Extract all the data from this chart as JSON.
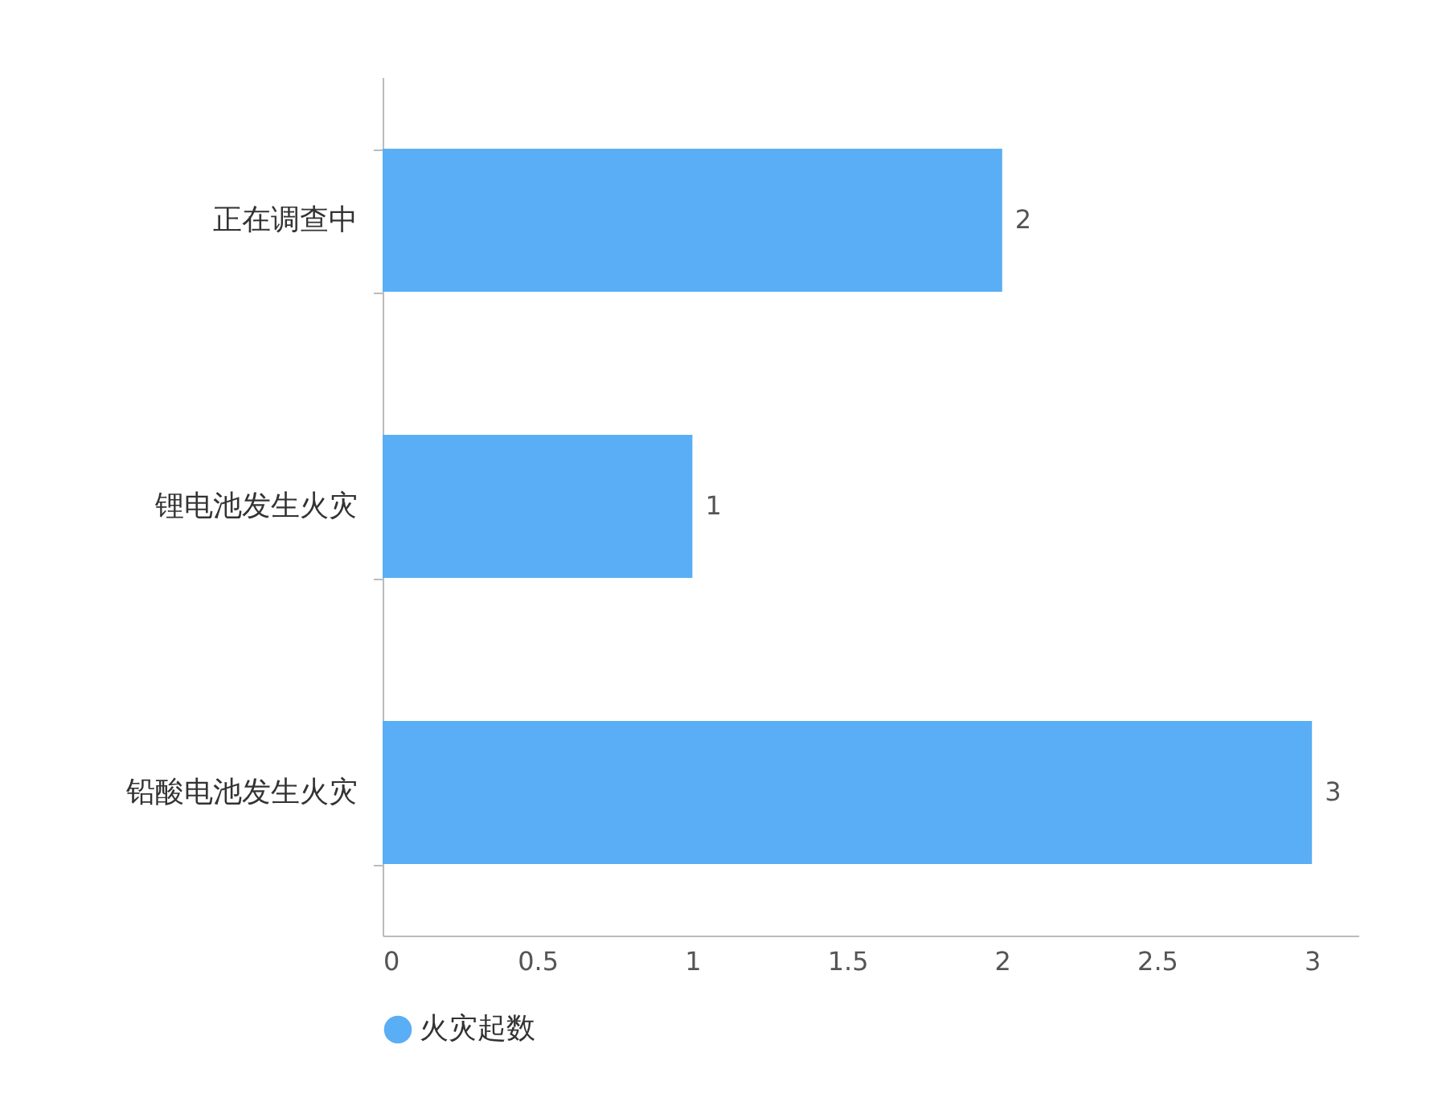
{
  "chart_data": {
    "type": "bar",
    "orientation": "horizontal",
    "categories": [
      "正在调查中",
      "锂电池发生火灾",
      "铅酸电池发生火灾"
    ],
    "series": [
      {
        "name": "火灾起数",
        "color": "#5aaef5",
        "values": [
          2,
          1,
          3
        ]
      }
    ],
    "xlim": [
      0,
      3.15
    ],
    "xticks": [
      0,
      0.5,
      1,
      1.5,
      2,
      2.5,
      3
    ],
    "grid": false,
    "legend": "bottom",
    "data_labels": true
  }
}
